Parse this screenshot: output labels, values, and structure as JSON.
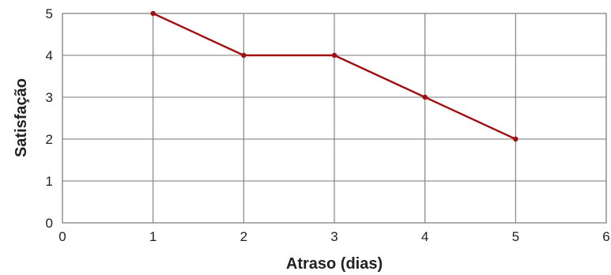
{
  "chart_data": {
    "type": "line",
    "title": "",
    "xlabel": "Atraso (dias)",
    "ylabel": "Satisfação",
    "xlim": [
      0,
      6
    ],
    "ylim": [
      0,
      5
    ],
    "x_ticks": [
      "0",
      "1",
      "2",
      "3",
      "4",
      "5",
      "6"
    ],
    "y_ticks": [
      "0",
      "1",
      "2",
      "3",
      "4",
      "5"
    ],
    "grid": true,
    "legend": "none",
    "series": [
      {
        "x": [
          1,
          2,
          3,
          4,
          5
        ],
        "y": [
          5,
          4,
          4,
          3,
          2
        ],
        "color": "#a01010"
      }
    ],
    "colors": {
      "line": "#a01010",
      "grid": "#7a7a7a",
      "frame": "#7a7a7a"
    }
  }
}
